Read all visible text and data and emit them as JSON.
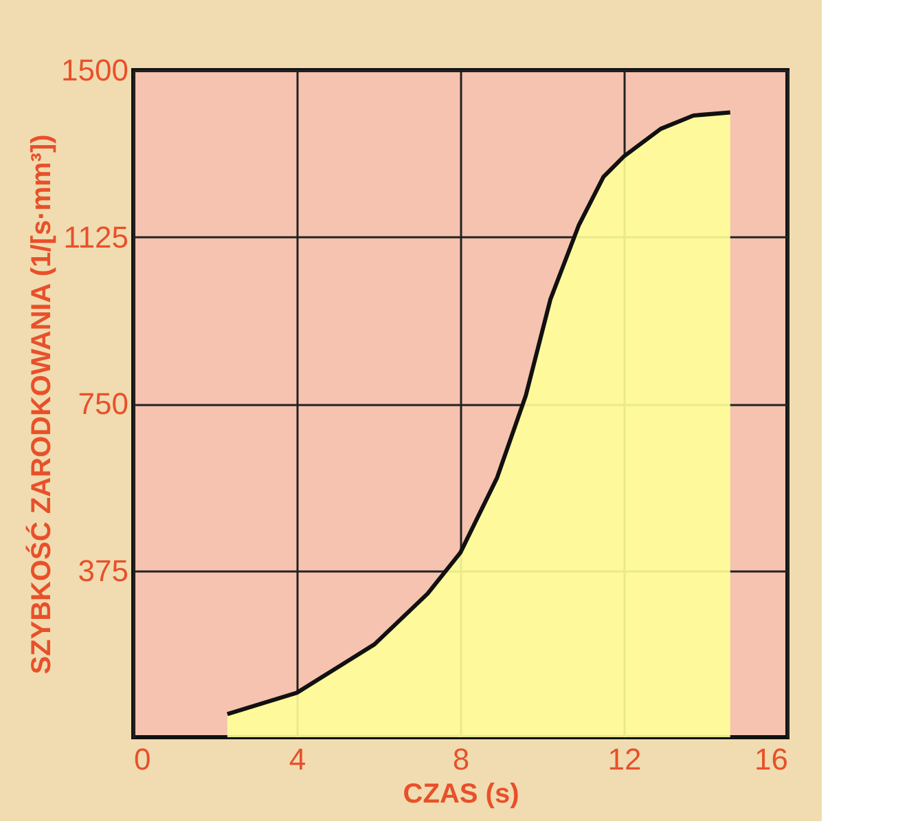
{
  "chart_data": {
    "type": "area",
    "xlabel": "CZAS (s)",
    "ylabel": "SZYBKOŚĆ  ZARODKOWANIA  (1/[s·mm³])",
    "x": [
      2.3,
      4,
      5.9,
      7.2,
      8,
      8.9,
      9.6,
      10.2,
      10.9,
      11.5,
      12,
      12.9,
      13.7,
      14.6
    ],
    "series": [
      {
        "color": "#ffff99",
        "values": [
          52,
          100,
          209,
          323,
          415,
          584,
          768,
          984,
          1152,
          1260,
          1306,
          1368,
          1398,
          1405
        ]
      }
    ],
    "xlim": [
      0,
      16
    ],
    "xticks": [
      0,
      4,
      8,
      12,
      16
    ],
    "ylim": [
      0,
      1500
    ],
    "yticks": [
      375,
      750,
      1125,
      1500
    ],
    "grid": true
  }
}
